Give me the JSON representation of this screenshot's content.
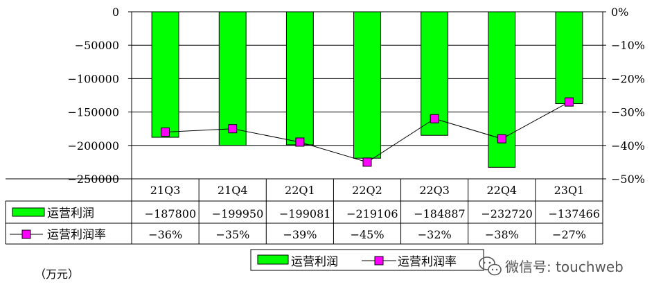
{
  "chart_data": {
    "type": "bar",
    "categories": [
      "21Q3",
      "21Q4",
      "22Q1",
      "22Q2",
      "22Q3",
      "22Q4",
      "23Q1"
    ],
    "series": [
      {
        "name": "运营利润",
        "type": "bar",
        "axis": "left",
        "color": "#00FF00",
        "values": [
          -187800,
          -199950,
          -199081,
          -219106,
          -184887,
          -232720,
          -137466
        ],
        "value_labels": [
          "−187800",
          "−199950",
          "−199081",
          "−219106",
          "−184887",
          "−232720",
          "−137466"
        ]
      },
      {
        "name": "运营利润率",
        "type": "line",
        "axis": "right",
        "color": "#FF00FF",
        "values": [
          -36,
          -35,
          -39,
          -45,
          -32,
          -38,
          -27
        ],
        "value_labels": [
          "−36%",
          "−35%",
          "−39%",
          "−45%",
          "−32%",
          "−38%",
          "−27%"
        ]
      }
    ],
    "yleft": {
      "ylim": [
        -250000,
        0
      ],
      "tick_values": [
        0,
        -50000,
        -100000,
        -150000,
        -200000,
        -250000
      ],
      "tick_labels": [
        "0",
        "−50000",
        "−100000",
        "−150000",
        "−200000",
        "−250000"
      ]
    },
    "yright": {
      "ylim": [
        -50,
        0
      ],
      "tick_values": [
        0,
        -10,
        -20,
        -30,
        -40,
        -50
      ],
      "tick_labels": [
        "0%",
        "−10%",
        "−20%",
        "−30%",
        "−40%",
        "−50%"
      ]
    },
    "grid": true,
    "legend": "bottom",
    "data_table": true
  },
  "unit_label": "（万元）",
  "watermark": "微信号: touchweb"
}
